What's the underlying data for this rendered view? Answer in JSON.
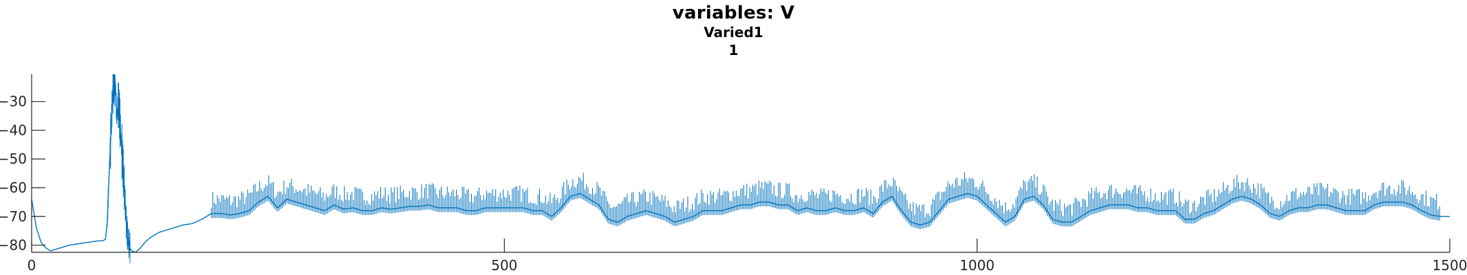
{
  "title": "variables: V",
  "subtitle": "Varied1",
  "subsubtitle": "1",
  "chart_data": {
    "type": "line",
    "title": "variables: V",
    "subtitle": "Varied1",
    "panel_label": "1",
    "xlabel": "",
    "ylabel": "",
    "xlim": [
      0,
      1500
    ],
    "ylim": [
      -82.5,
      -20.5
    ],
    "x_ticks": [
      0,
      500,
      1000,
      1500
    ],
    "y_ticks": [
      -80,
      -70,
      -60,
      -50,
      -40,
      -30
    ],
    "grid": false,
    "line_color": "#0072BD",
    "series": [
      {
        "x": [
          0,
          5,
          10,
          15,
          20,
          25,
          30,
          40,
          50,
          60,
          70,
          75,
          78,
          80,
          82,
          84,
          86,
          88,
          90,
          92,
          94,
          96,
          98,
          100,
          102,
          104,
          106,
          110,
          115,
          120,
          125,
          130,
          135,
          140,
          150,
          160,
          170,
          180,
          190,
          200,
          210,
          220,
          230,
          240,
          250,
          260,
          270,
          280,
          290,
          300,
          310,
          320,
          330,
          340,
          350,
          360,
          370,
          380,
          390,
          400,
          410,
          420,
          430,
          440,
          450,
          460,
          470,
          480,
          490,
          500,
          510,
          520,
          530,
          540,
          550,
          560,
          570,
          580,
          590,
          600,
          610,
          620,
          630,
          640,
          650,
          660,
          670,
          680,
          690,
          700,
          710,
          720,
          730,
          740,
          750,
          760,
          770,
          780,
          790,
          800,
          810,
          820,
          830,
          840,
          850,
          860,
          870,
          880,
          890,
          900,
          910,
          920,
          930,
          940,
          950,
          960,
          970,
          980,
          990,
          1000,
          1010,
          1020,
          1030,
          1040,
          1050,
          1060,
          1070,
          1080,
          1090,
          1100,
          1110,
          1120,
          1130,
          1140,
          1150,
          1160,
          1170,
          1180,
          1190,
          1200,
          1210,
          1220,
          1230,
          1240,
          1250,
          1260,
          1270,
          1280,
          1290,
          1300,
          1310,
          1320,
          1330,
          1340,
          1350,
          1360,
          1370,
          1380,
          1390,
          1400,
          1410,
          1420,
          1430,
          1440,
          1450,
          1460,
          1470,
          1480,
          1490,
          1500
        ],
        "y": [
          -64,
          -74,
          -79,
          -81,
          -82,
          -81.5,
          -81,
          -80,
          -79.5,
          -79,
          -78.5,
          -78.5,
          -78,
          -72,
          -55,
          -40,
          -25,
          -21,
          -35,
          -30,
          -40,
          -50,
          -60,
          -72,
          -78,
          -81,
          -82,
          -82.5,
          -81,
          -79,
          -77.5,
          -76.5,
          -75.5,
          -75,
          -74,
          -73,
          -72.5,
          -71,
          -69,
          -69,
          -69.5,
          -69,
          -68,
          -65,
          -63,
          -67,
          -64,
          -65,
          -66,
          -67,
          -68,
          -66,
          -67.5,
          -67,
          -68,
          -68,
          -67,
          -67.5,
          -67,
          -66.5,
          -66.5,
          -66,
          -67,
          -67,
          -67,
          -68,
          -68,
          -67,
          -67,
          -67,
          -67,
          -67,
          -68,
          -68,
          -70,
          -67,
          -63,
          -62,
          -64,
          -66,
          -71,
          -72,
          -70,
          -69,
          -68,
          -69,
          -70,
          -72,
          -71,
          -70,
          -68,
          -68,
          -68,
          -67,
          -66,
          -66,
          -65,
          -65,
          -66,
          -66,
          -68,
          -67,
          -68,
          -68,
          -67,
          -68,
          -68,
          -67,
          -69,
          -65,
          -63,
          -68,
          -72,
          -73,
          -72,
          -68,
          -64,
          -63,
          -62,
          -63,
          -66,
          -69,
          -72,
          -70,
          -64,
          -63,
          -66,
          -71,
          -72,
          -72,
          -70,
          -68,
          -67,
          -66,
          -66,
          -66,
          -67,
          -67,
          -68,
          -68,
          -68,
          -71,
          -71,
          -69,
          -68,
          -66,
          -64,
          -63,
          -64,
          -66,
          -69,
          -70,
          -68,
          -67,
          -67,
          -66,
          -66,
          -67,
          -68,
          -68,
          -68,
          -66,
          -65,
          -65,
          -65,
          -66,
          -68,
          -69.5,
          -70,
          -70
        ]
      }
    ]
  }
}
